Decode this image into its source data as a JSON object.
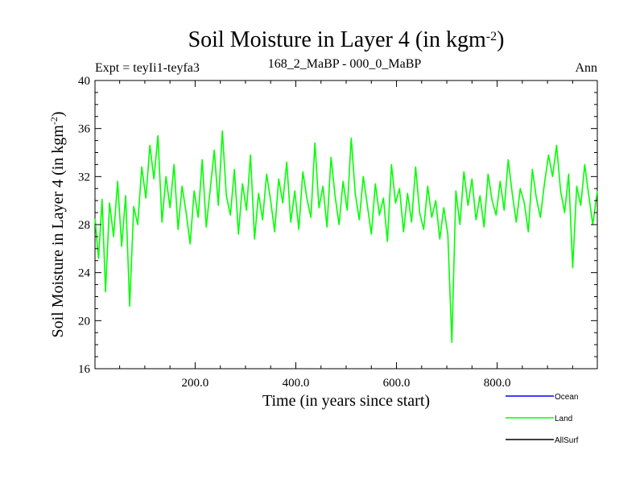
{
  "chart_data": {
    "type": "line",
    "title": "Soil Moisture in Layer 4 (in kgm",
    "title_sup": "-2",
    "title_close": ")",
    "subtitle_left": "Expt = teyIi1-teyfa3",
    "subtitle_center": "168_2_MaBP - 000_0_MaBP",
    "subtitle_right": "Ann",
    "xlabel": "Time (in years since start)",
    "ylabel": "Soil Moisture in Layer 4 (in kgm",
    "ylabel_sup": "-2",
    "ylabel_close": ")",
    "xlim": [
      1,
      999
    ],
    "ylim": [
      16,
      40
    ],
    "xticks": [
      200,
      400,
      600,
      800
    ],
    "xtick_labels": [
      "200.0",
      "400.0",
      "600.0",
      "800.0"
    ],
    "yticks": [
      16,
      20,
      24,
      28,
      32,
      36,
      40
    ],
    "ytick_labels": [
      "16",
      "20",
      "24",
      "28",
      "32",
      "36",
      "40"
    ],
    "grid": false,
    "legend_position": "bottom-right",
    "series": [
      {
        "name": "Ocean",
        "color": "#0000ff",
        "values": []
      },
      {
        "name": "Land",
        "color": "#00ff00",
        "x": [
          1,
          8,
          15,
          22,
          30,
          38,
          46,
          54,
          62,
          70,
          78,
          86,
          94,
          102,
          110,
          118,
          126,
          134,
          142,
          150,
          158,
          166,
          174,
          182,
          190,
          198,
          206,
          214,
          222,
          230,
          238,
          246,
          254,
          262,
          270,
          278,
          286,
          294,
          302,
          310,
          318,
          326,
          334,
          342,
          350,
          358,
          366,
          374,
          382,
          390,
          398,
          406,
          414,
          422,
          430,
          438,
          446,
          454,
          462,
          470,
          478,
          486,
          494,
          502,
          510,
          518,
          526,
          534,
          542,
          550,
          558,
          566,
          574,
          582,
          590,
          598,
          606,
          614,
          622,
          630,
          638,
          646,
          654,
          662,
          670,
          678,
          686,
          694,
          702,
          710,
          718,
          726,
          734,
          742,
          750,
          758,
          766,
          774,
          782,
          790,
          798,
          806,
          814,
          822,
          830,
          838,
          846,
          854,
          862,
          870,
          878,
          886,
          894,
          902,
          910,
          918,
          926,
          934,
          942,
          950,
          958,
          966,
          974,
          982,
          990,
          999
        ],
        "values": [
          28.5,
          25.2,
          30.1,
          22.4,
          29.8,
          27.0,
          31.6,
          26.2,
          30.4,
          21.2,
          29.5,
          28.0,
          32.8,
          30.2,
          34.6,
          31.8,
          35.4,
          28.2,
          32.0,
          29.4,
          33.0,
          27.6,
          31.2,
          29.0,
          26.4,
          30.8,
          28.6,
          33.4,
          27.8,
          31.0,
          34.2,
          29.6,
          35.8,
          30.4,
          28.8,
          32.6,
          27.2,
          31.4,
          29.2,
          33.8,
          26.8,
          30.6,
          28.4,
          32.2,
          30.0,
          27.4,
          31.8,
          29.8,
          33.2,
          28.2,
          30.8,
          27.6,
          32.4,
          30.2,
          28.6,
          34.8,
          29.4,
          31.2,
          27.8,
          33.6,
          30.4,
          28.0,
          31.6,
          29.2,
          35.2,
          30.6,
          28.4,
          32.0,
          29.6,
          27.2,
          31.4,
          28.8,
          30.2,
          26.6,
          33.0,
          29.8,
          31.0,
          27.4,
          30.6,
          28.2,
          32.8,
          29.0,
          27.6,
          31.2,
          28.6,
          30.0,
          26.8,
          29.4,
          27.2,
          18.2,
          30.8,
          28.0,
          32.4,
          29.6,
          31.8,
          28.4,
          30.4,
          27.8,
          32.2,
          30.0,
          28.8,
          31.6,
          29.2,
          33.4,
          30.6,
          28.2,
          31.0,
          29.8,
          27.4,
          32.6,
          30.2,
          28.6,
          31.4,
          33.8,
          32.0,
          34.6,
          30.8,
          29.0,
          32.2,
          24.4,
          31.2,
          29.6,
          33.0,
          30.4,
          28.0,
          30.8
        ]
      },
      {
        "name": "AllSurf",
        "color": "#000000",
        "values": []
      }
    ]
  }
}
